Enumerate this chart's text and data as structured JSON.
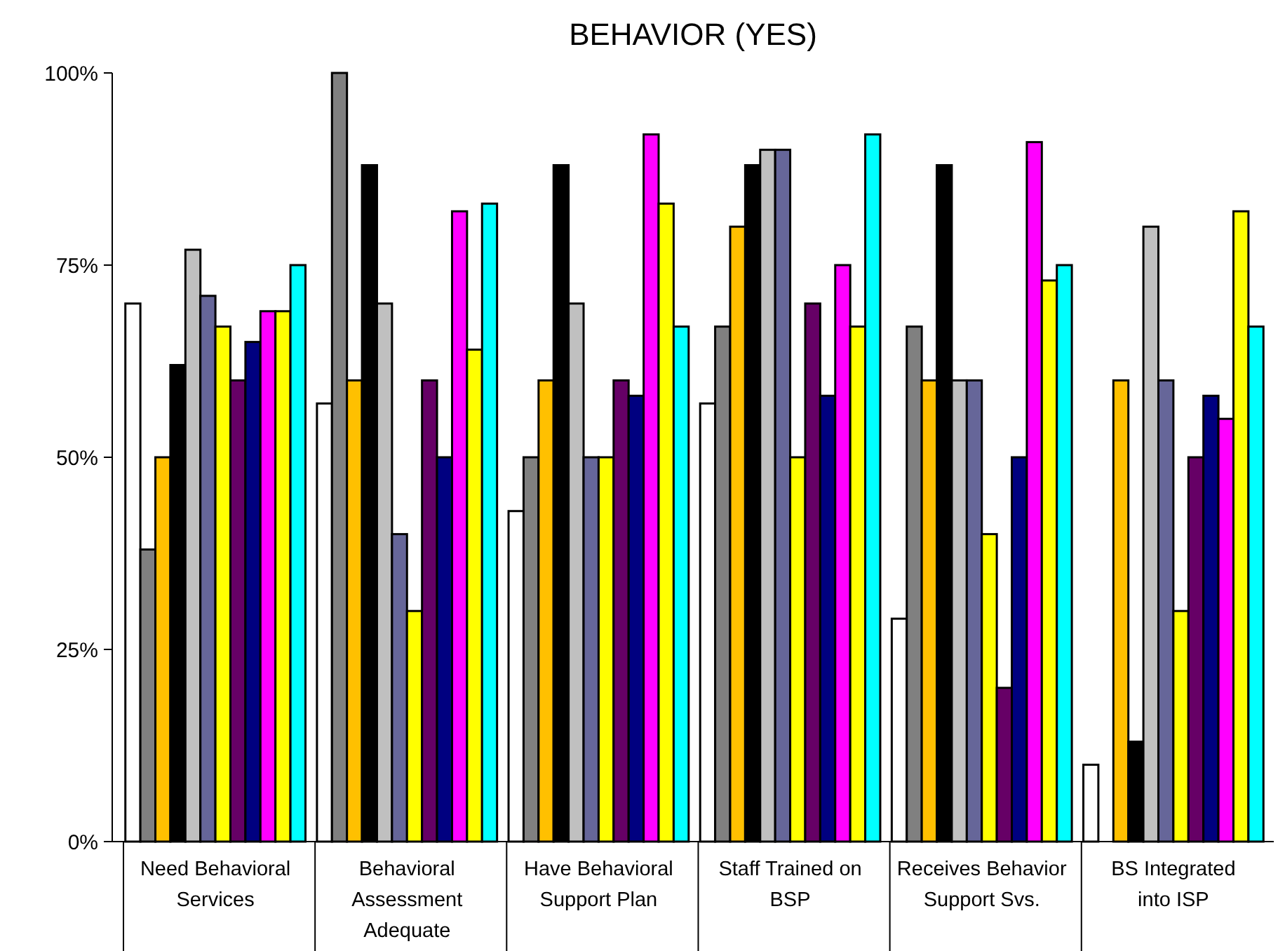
{
  "chart_data": {
    "type": "bar",
    "title": "BEHAVIOR (YES)",
    "categories": [
      "Need Behavioral Services",
      "Behavioral Assessment Adequate",
      "Have Behavioral Support Plan",
      "Staff Trained on BSP",
      "Receives Behavior Support Svs.",
      "BS Integrated into ISP"
    ],
    "series": [
      {
        "color": "#ffffff",
        "values": [
          70,
          57,
          43,
          57,
          29,
          10
        ]
      },
      {
        "color": "#808080",
        "values": [
          38,
          100,
          50,
          67,
          67,
          0
        ]
      },
      {
        "color": "#ffc000",
        "values": [
          50,
          60,
          60,
          80,
          60,
          60
        ]
      },
      {
        "color": "#000000",
        "values": [
          62,
          88,
          88,
          88,
          88,
          13
        ]
      },
      {
        "color": "#c0c0c0",
        "values": [
          77,
          70,
          70,
          90,
          60,
          80
        ]
      },
      {
        "color": "#666699",
        "values": [
          71,
          40,
          50,
          90,
          60,
          60
        ]
      },
      {
        "color": "#ffff00",
        "values": [
          67,
          30,
          50,
          50,
          40,
          30
        ]
      },
      {
        "color": "#660066",
        "values": [
          60,
          60,
          60,
          70,
          20,
          50
        ]
      },
      {
        "color": "#000080",
        "values": [
          65,
          50,
          58,
          58,
          50,
          58
        ]
      },
      {
        "color": "#ff00ff",
        "values": [
          69,
          82,
          92,
          75,
          91,
          55
        ]
      },
      {
        "color": "#ffff00",
        "values": [
          69,
          64,
          83,
          67,
          73,
          82
        ]
      },
      {
        "color": "#00ffff",
        "values": [
          75,
          83,
          67,
          92,
          75,
          67
        ]
      }
    ],
    "ylim": [
      0,
      100
    ],
    "yticks": [
      {
        "value": 0,
        "label": "0%"
      },
      {
        "value": 25,
        "label": "25%"
      },
      {
        "value": 50,
        "label": "50%"
      },
      {
        "value": 75,
        "label": "75%"
      },
      {
        "value": 100,
        "label": "100%"
      }
    ],
    "grid": false
  }
}
